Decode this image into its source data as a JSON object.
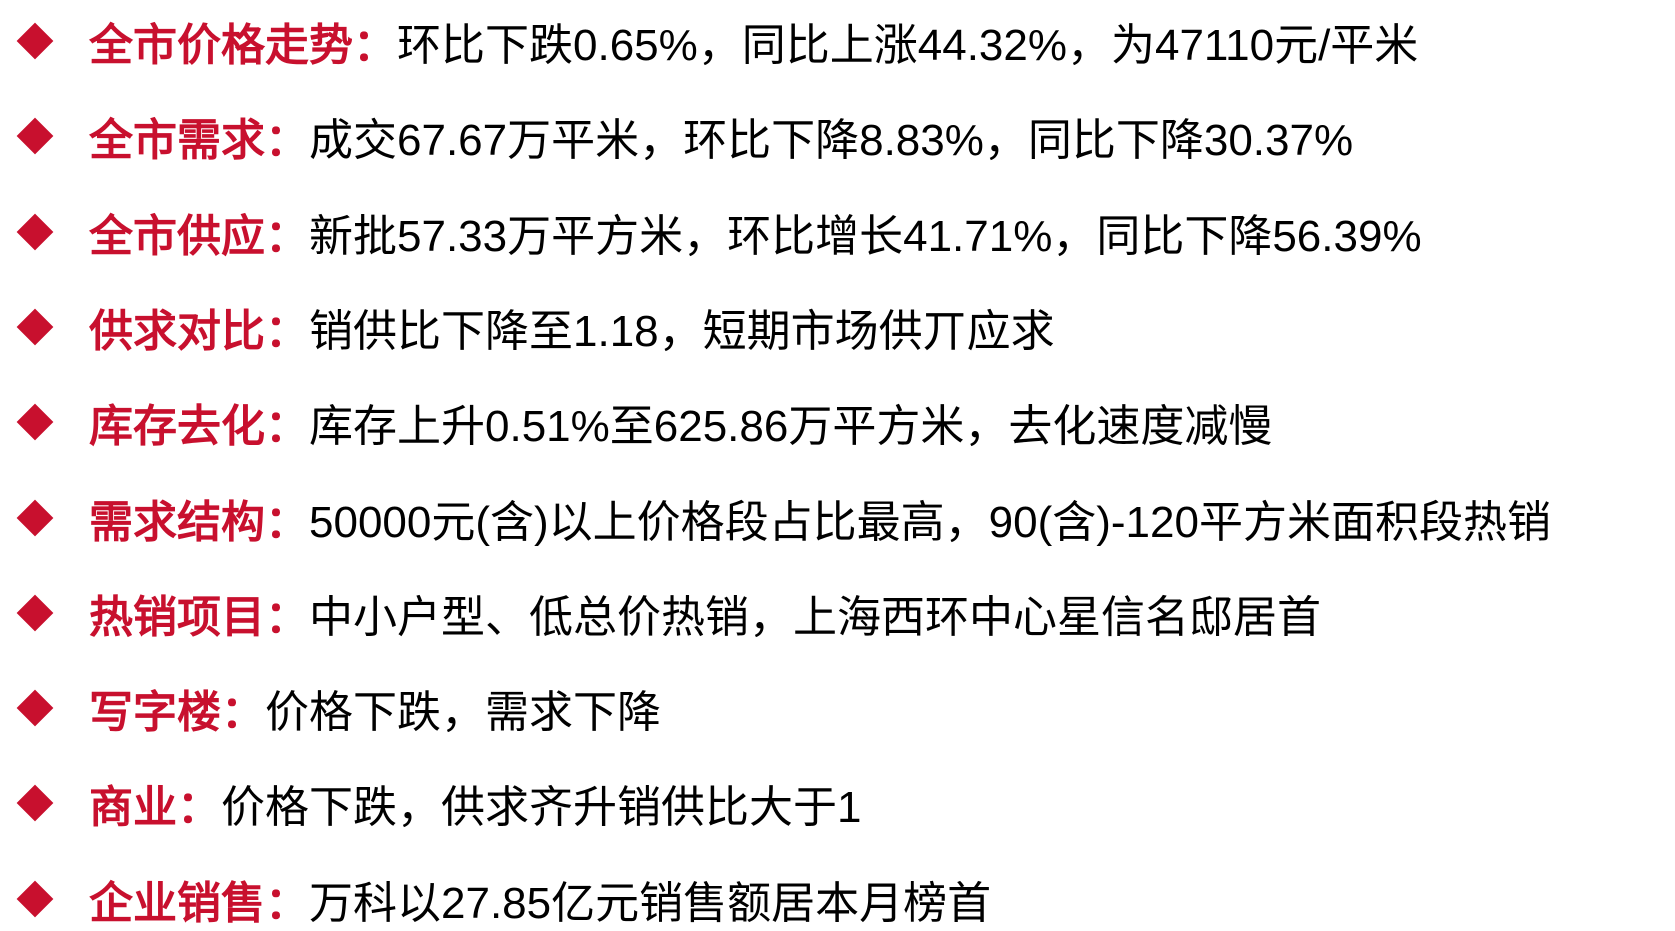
{
  "items": [
    {
      "label": "全市价格走势：",
      "text": "环比下跌0.65%，同比上涨44.32%，为47110元/平米"
    },
    {
      "label": "全市需求：",
      "text": "成交67.67万平米，环比下降8.83%，同比下降30.37%"
    },
    {
      "label": "全市供应：",
      "text": "新批57.33万平方米，环比增长41.71%，同比下降56.39%"
    },
    {
      "label": "供求对比：",
      "text": "销供比下降至1.18，短期市场供丌应求"
    },
    {
      "label": "库存去化：",
      "text": "库存上升0.51%至625.86万平方米，去化速度减慢"
    },
    {
      "label": "需求结构：",
      "text": "50000元(含)以上价格段占比最高，90(含)-120平方米面积段热销"
    },
    {
      "label": "热销项目：",
      "text": "中小户型、低总价热销，上海西环中心星信名邸居首"
    },
    {
      "label": "写字楼：",
      "text": "价格下跌，需求下降"
    },
    {
      "label": "商业：",
      "text": "价格下跌，供求齐升销供比大于1"
    },
    {
      "label": "企业销售：",
      "text": "万科以27.85亿元销售额居本月榜首"
    }
  ]
}
